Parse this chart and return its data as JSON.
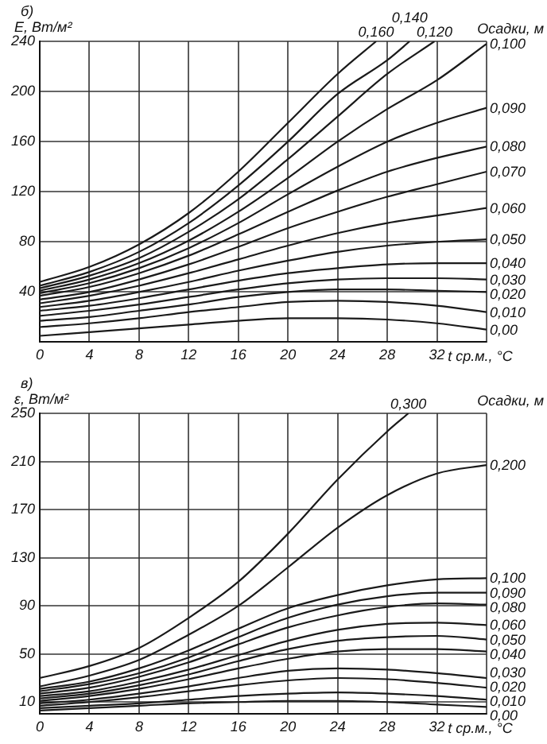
{
  "chart_data": [
    {
      "type": "line",
      "title": "б)",
      "ylabel": "E, Вт/м²",
      "xlabel": "t ср.м., °C",
      "legend_title": "Осадки, м",
      "x": [
        0,
        4,
        8,
        12,
        16,
        20,
        24,
        28,
        32,
        36
      ],
      "xlim": [
        0,
        36
      ],
      "xticks": [
        0,
        4,
        8,
        12,
        16,
        20,
        24,
        28,
        32,
        {
          "value": 36,
          "label": null
        }
      ],
      "ylim": [
        0,
        240
      ],
      "yticks": [
        40,
        80,
        120,
        160,
        200,
        240
      ],
      "grid": true,
      "legend": false,
      "marker": "none",
      "line_style": "solid",
      "series": [
        {
          "name": "0,00",
          "color": "#1a1a1a",
          "values": [
            5,
            8,
            11,
            14,
            17,
            19,
            19,
            18,
            15,
            10
          ]
        },
        {
          "name": "0,010",
          "color": "#1a1a1a",
          "values": [
            12,
            15,
            19,
            24,
            28,
            32,
            33,
            32,
            29,
            24
          ]
        },
        {
          "name": "0,020",
          "color": "#1a1a1a",
          "values": [
            17,
            20,
            25,
            30,
            36,
            40,
            42,
            42,
            41,
            40
          ]
        },
        {
          "name": "0,030",
          "color": "#1a1a1a",
          "values": [
            21,
            25,
            30,
            36,
            42,
            47,
            50,
            51,
            51,
            50
          ]
        },
        {
          "name": "0,040",
          "color": "#1a1a1a",
          "values": [
            25,
            29,
            35,
            42,
            49,
            55,
            59,
            62,
            63,
            63
          ]
        },
        {
          "name": "0,050",
          "color": "#1a1a1a",
          "values": [
            28,
            33,
            40,
            48,
            57,
            65,
            72,
            77,
            80,
            82
          ]
        },
        {
          "name": "0,060",
          "color": "#1a1a1a",
          "values": [
            31,
            37,
            45,
            55,
            66,
            77,
            87,
            95,
            101,
            107
          ]
        },
        {
          "name": "0,070",
          "color": "#1a1a1a",
          "values": [
            34,
            40,
            50,
            62,
            76,
            91,
            104,
            116,
            126,
            136
          ]
        },
        {
          "name": "0,080",
          "color": "#1a1a1a",
          "values": [
            37,
            44,
            55,
            69,
            86,
            104,
            121,
            136,
            147,
            156
          ]
        },
        {
          "name": "0,090",
          "color": "#1a1a1a",
          "values": [
            39,
            47,
            59,
            75,
            95,
            118,
            140,
            160,
            175,
            187
          ]
        },
        {
          "name": "0,100",
          "color": "#1a1a1a",
          "values": [
            41,
            50,
            63,
            81,
            104,
            131,
            160,
            186,
            209,
            238
          ]
        },
        {
          "name": "0,120",
          "color": "#1a1a1a",
          "x": [
            0,
            4,
            8,
            12,
            16,
            20,
            24,
            28,
            31.8
          ],
          "values": [
            43,
            53,
            67,
            88,
            114,
            146,
            180,
            214,
            240
          ]
        },
        {
          "name": "0,140",
          "color": "#1a1a1a",
          "x": [
            0,
            4,
            8,
            12,
            16,
            20,
            24,
            28,
            29.8
          ],
          "values": [
            45,
            56,
            72,
            95,
            125,
            160,
            198,
            225,
            240
          ]
        },
        {
          "name": "0,160",
          "color": "#1a1a1a",
          "x": [
            0,
            4,
            8,
            12,
            16,
            20,
            24,
            27.1
          ],
          "values": [
            48,
            60,
            78,
            103,
            136,
            175,
            214,
            240
          ]
        }
      ]
    },
    {
      "type": "line",
      "title": "в)",
      "ylabel": "ε, Вт/м²",
      "xlabel": "t ср.м., °C",
      "legend_title": "Осадки, м",
      "x": [
        0,
        4,
        8,
        12,
        16,
        20,
        24,
        28,
        32,
        36
      ],
      "xlim": [
        0,
        36
      ],
      "xticks": [
        0,
        4,
        8,
        12,
        16,
        20,
        24,
        28,
        32,
        {
          "value": 36,
          "label": null
        }
      ],
      "ylim": [
        0,
        250
      ],
      "yticks": [
        10,
        50,
        90,
        130,
        170,
        210,
        250
      ],
      "grid": true,
      "legend": false,
      "marker": "none",
      "line_style": "solid",
      "series": [
        {
          "name": "0,00",
          "color": "#1a1a1a",
          "values": [
            3,
            5,
            7,
            9,
            10,
            11,
            11,
            10,
            8,
            6
          ]
        },
        {
          "name": "0,010",
          "color": "#1a1a1a",
          "values": [
            5,
            7,
            9,
            12,
            15,
            17,
            18,
            17,
            15,
            12
          ]
        },
        {
          "name": "0,020",
          "color": "#1a1a1a",
          "values": [
            7,
            10,
            14,
            19,
            24,
            28,
            30,
            29,
            26,
            22
          ]
        },
        {
          "name": "0,030",
          "color": "#1a1a1a",
          "values": [
            9,
            12,
            17,
            23,
            30,
            36,
            38,
            37,
            34,
            30
          ]
        },
        {
          "name": "0,040",
          "color": "#1a1a1a",
          "values": [
            11,
            15,
            21,
            29,
            38,
            46,
            52,
            54,
            54,
            52
          ]
        },
        {
          "name": "0,050",
          "color": "#1a1a1a",
          "values": [
            13,
            17,
            24,
            33,
            44,
            54,
            61,
            64,
            65,
            62
          ]
        },
        {
          "name": "0,060",
          "color": "#1a1a1a",
          "values": [
            15,
            19,
            27,
            37,
            49,
            61,
            70,
            75,
            76,
            74
          ]
        },
        {
          "name": "0,080",
          "color": "#1a1a1a",
          "values": [
            17,
            22,
            31,
            43,
            58,
            72,
            82,
            89,
            92,
            91
          ]
        },
        {
          "name": "0,090",
          "color": "#1a1a1a",
          "values": [
            19,
            25,
            34,
            47,
            64,
            80,
            91,
            98,
            101,
            101
          ]
        },
        {
          "name": "0,100",
          "color": "#1a1a1a",
          "values": [
            21,
            27,
            38,
            53,
            71,
            88,
            99,
            107,
            112,
            113
          ]
        },
        {
          "name": "0,200",
          "color": "#1a1a1a",
          "values": [
            23,
            32,
            45,
            66,
            90,
            122,
            155,
            182,
            200,
            207
          ]
        },
        {
          "name": "0,300",
          "color": "#1a1a1a",
          "x": [
            0,
            4,
            8,
            12,
            16,
            20,
            24,
            28,
            29.7
          ],
          "values": [
            30,
            40,
            55,
            80,
            110,
            150,
            195,
            235,
            250
          ]
        }
      ]
    }
  ]
}
